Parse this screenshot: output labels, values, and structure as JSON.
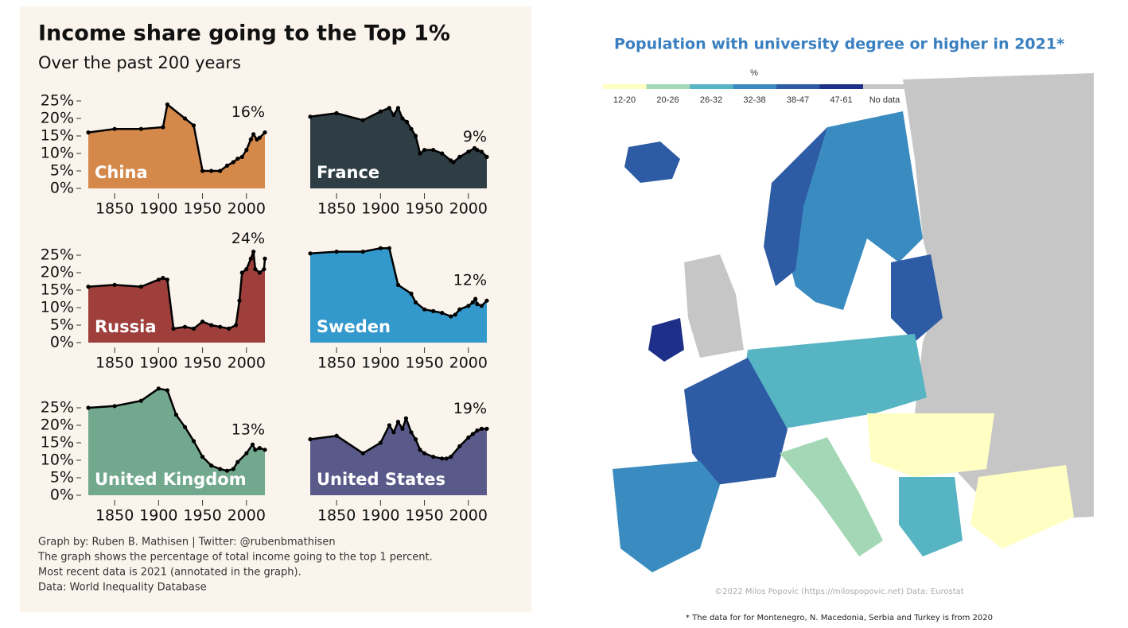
{
  "left_panel": {
    "title": "Income share going to the Top 1%",
    "subtitle": "Over the past 200 years",
    "notes": [
      "Graph by: Ruben B. Mathisen | Twitter: @rubenbmathisen",
      "The graph shows the percentage of total income going to the top 1 percent.",
      "Most recent data is 2021 (annotated in the graph).",
      "Data: World Inequality Database"
    ]
  },
  "chart_data": [
    {
      "type": "area",
      "title": "China",
      "annotation": "16%",
      "color": "#d4894a",
      "x": [
        1820,
        1850,
        1880,
        1905,
        1910,
        1930,
        1940,
        1950,
        1960,
        1970,
        1978,
        1985,
        1990,
        1995,
        2000,
        2005,
        2008,
        2012,
        2015,
        2021
      ],
      "values": [
        16,
        17,
        17,
        17.5,
        24,
        20,
        18,
        5,
        5,
        5,
        6.5,
        7.5,
        8.5,
        9,
        11,
        14,
        15.5,
        14,
        14.5,
        16
      ],
      "xlim": [
        1820,
        2021
      ],
      "xticks": [
        1850,
        1900,
        1950,
        2000
      ],
      "ylim": [
        0,
        31
      ],
      "yticks": [
        {
          "value": 0,
          "label": "0%"
        },
        {
          "value": 5,
          "label": "5%"
        },
        {
          "value": 10,
          "label": "10%"
        },
        {
          "value": 15,
          "label": "15%"
        },
        {
          "value": 20,
          "label": "20%"
        },
        {
          "value": 25,
          "label": "25%"
        }
      ]
    },
    {
      "type": "area",
      "title": "France",
      "annotation": "9%",
      "color": "#2f3e45",
      "x": [
        1820,
        1850,
        1880,
        1900,
        1910,
        1915,
        1920,
        1925,
        1930,
        1935,
        1940,
        1945,
        1950,
        1960,
        1970,
        1980,
        1983,
        1990,
        2000,
        2007,
        2010,
        2015,
        2021
      ],
      "values": [
        20.5,
        21.5,
        19.5,
        22,
        23,
        21,
        23,
        20,
        19,
        17,
        15,
        10,
        11,
        11,
        10,
        8,
        7.5,
        9,
        10.5,
        11.5,
        11,
        10.5,
        9
      ],
      "xlim": [
        1820,
        2021
      ],
      "xticks": [
        1850,
        1900,
        1950,
        2000
      ],
      "ylim": [
        0,
        31
      ]
    },
    {
      "type": "area",
      "title": "Russia",
      "annotation": "24%",
      "color": "#9e3f3c",
      "x": [
        1820,
        1850,
        1880,
        1900,
        1905,
        1910,
        1917,
        1930,
        1940,
        1950,
        1960,
        1970,
        1980,
        1988,
        1992,
        1995,
        2000,
        2005,
        2008,
        2010,
        2015,
        2020,
        2021
      ],
      "values": [
        16,
        16.5,
        16,
        18,
        18.5,
        18,
        4,
        4.5,
        4,
        6,
        5,
        4.5,
        4,
        5,
        12,
        20,
        21,
        24,
        26,
        21,
        20,
        21,
        24
      ],
      "xlim": [
        1820,
        2021
      ],
      "xticks": [
        1850,
        1900,
        1950,
        2000
      ],
      "ylim": [
        0,
        31
      ],
      "yticks": [
        {
          "value": 0,
          "label": "0%"
        },
        {
          "value": 5,
          "label": "5%"
        },
        {
          "value": 10,
          "label": "10%"
        },
        {
          "value": 15,
          "label": "15%"
        },
        {
          "value": 20,
          "label": "20%"
        },
        {
          "value": 25,
          "label": "25%"
        }
      ]
    },
    {
      "type": "area",
      "title": "Sweden",
      "annotation": "12%",
      "color": "#3399cc",
      "x": [
        1820,
        1850,
        1880,
        1900,
        1910,
        1920,
        1935,
        1940,
        1950,
        1960,
        1970,
        1980,
        1985,
        1990,
        2000,
        2005,
        2008,
        2010,
        2015,
        2021
      ],
      "values": [
        25.5,
        26,
        26,
        27,
        27,
        16.5,
        14,
        11.5,
        9.5,
        9,
        8.5,
        7.5,
        8,
        9.5,
        10.5,
        11.5,
        12.5,
        11,
        10.5,
        12
      ],
      "xlim": [
        1820,
        2021
      ],
      "xticks": [
        1850,
        1900,
        1950,
        2000
      ],
      "ylim": [
        0,
        31
      ]
    },
    {
      "type": "area",
      "title": "United Kingdom",
      "annotation": "13%",
      "color": "#72a98e",
      "x": [
        1820,
        1850,
        1880,
        1900,
        1910,
        1920,
        1930,
        1940,
        1950,
        1960,
        1970,
        1978,
        1985,
        1990,
        2000,
        2007,
        2010,
        2015,
        2021
      ],
      "values": [
        25,
        25.5,
        27,
        30.5,
        30,
        23,
        19.5,
        15.5,
        11,
        8.5,
        7.5,
        7,
        7.5,
        9.5,
        12,
        14.5,
        13,
        13.5,
        13
      ],
      "xlim": [
        1820,
        2021
      ],
      "xticks": [
        1850,
        1900,
        1950,
        2000
      ],
      "ylim": [
        0,
        31
      ],
      "yticks": [
        {
          "value": 0,
          "label": "0%"
        },
        {
          "value": 5,
          "label": "5%"
        },
        {
          "value": 10,
          "label": "10%"
        },
        {
          "value": 15,
          "label": "15%"
        },
        {
          "value": 20,
          "label": "20%"
        },
        {
          "value": 25,
          "label": "25%"
        }
      ]
    },
    {
      "type": "area",
      "title": "United States",
      "annotation": "19%",
      "color": "#5a5a8a",
      "x": [
        1820,
        1850,
        1880,
        1900,
        1910,
        1915,
        1920,
        1925,
        1929,
        1935,
        1940,
        1945,
        1950,
        1960,
        1970,
        1975,
        1980,
        1990,
        2000,
        2005,
        2010,
        2015,
        2021
      ],
      "values": [
        16,
        17,
        12,
        15,
        20,
        18,
        21,
        19,
        22,
        18,
        16,
        13,
        12,
        11,
        10.5,
        10.5,
        11,
        14,
        16.5,
        17.5,
        18.5,
        19,
        19
      ],
      "xlim": [
        1820,
        2021
      ],
      "xticks": [
        1850,
        1900,
        1950,
        2000
      ],
      "ylim": [
        0,
        31
      ]
    }
  ],
  "map": {
    "title": "Population with university degree or higher in 2021*",
    "legend_title": "%",
    "legend": [
      {
        "label": "12-20",
        "color": "#ffffc4"
      },
      {
        "label": "20-26",
        "color": "#a3d7b5"
      },
      {
        "label": "26-32",
        "color": "#56b4c3"
      },
      {
        "label": "32-38",
        "color": "#3a8cc0"
      },
      {
        "label": "38-47",
        "color": "#2d5ba4"
      },
      {
        "label": "47-61",
        "color": "#1d2f88"
      },
      {
        "label": "No data",
        "color": "#c6c6c6"
      }
    ],
    "credit": "©2022 Milos Popovic (https://milospopovic.net) Data: Eurostat",
    "footnote": "* The data for for Montenegro, N. Macedonia, Serbia and Turkey is from 2020"
  }
}
